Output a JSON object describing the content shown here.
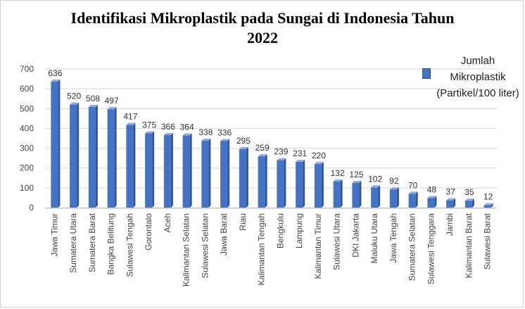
{
  "chart_data": {
    "type": "bar",
    "title_line1": "Identifikasi Mikroplastik pada Sungai di Indonesia Tahun",
    "title_line2": "2022",
    "legend_label": "Jumlah Mikroplastik (Partikel/100 liter)",
    "legend_position": "top-right",
    "bar_color": "#4472c4",
    "grid": true,
    "ylim": [
      0,
      700
    ],
    "yticks": [
      "0",
      "100",
      "200",
      "300",
      "400",
      "500",
      "600",
      "700"
    ],
    "categories": [
      "Jawa Timur",
      "Sumatera Utara",
      "Sumatera Barat",
      "Bangka Belitung",
      "Sulawesi Tengah",
      "Gorontalo",
      "Aceh",
      "Kalimantan Selatan",
      "Sulawesi Selatan",
      "Jawa Barat",
      "Riau",
      "Kalimantan Tengah",
      "Bengkulu",
      "Lampung",
      "Kalimantan Timur",
      "Sulawesi Utara",
      "DKI Jakarta",
      "Maluku Utara",
      "Jawa Tengah",
      "Sumatera Selatan",
      "Sulawesi Tenggara",
      "Jambi",
      "Kalimantan Barat",
      "Sulawesi Barat"
    ],
    "values": [
      636,
      520,
      508,
      497,
      417,
      375,
      366,
      364,
      338,
      336,
      295,
      259,
      239,
      231,
      220,
      132,
      125,
      102,
      92,
      70,
      48,
      37,
      35,
      12
    ]
  }
}
